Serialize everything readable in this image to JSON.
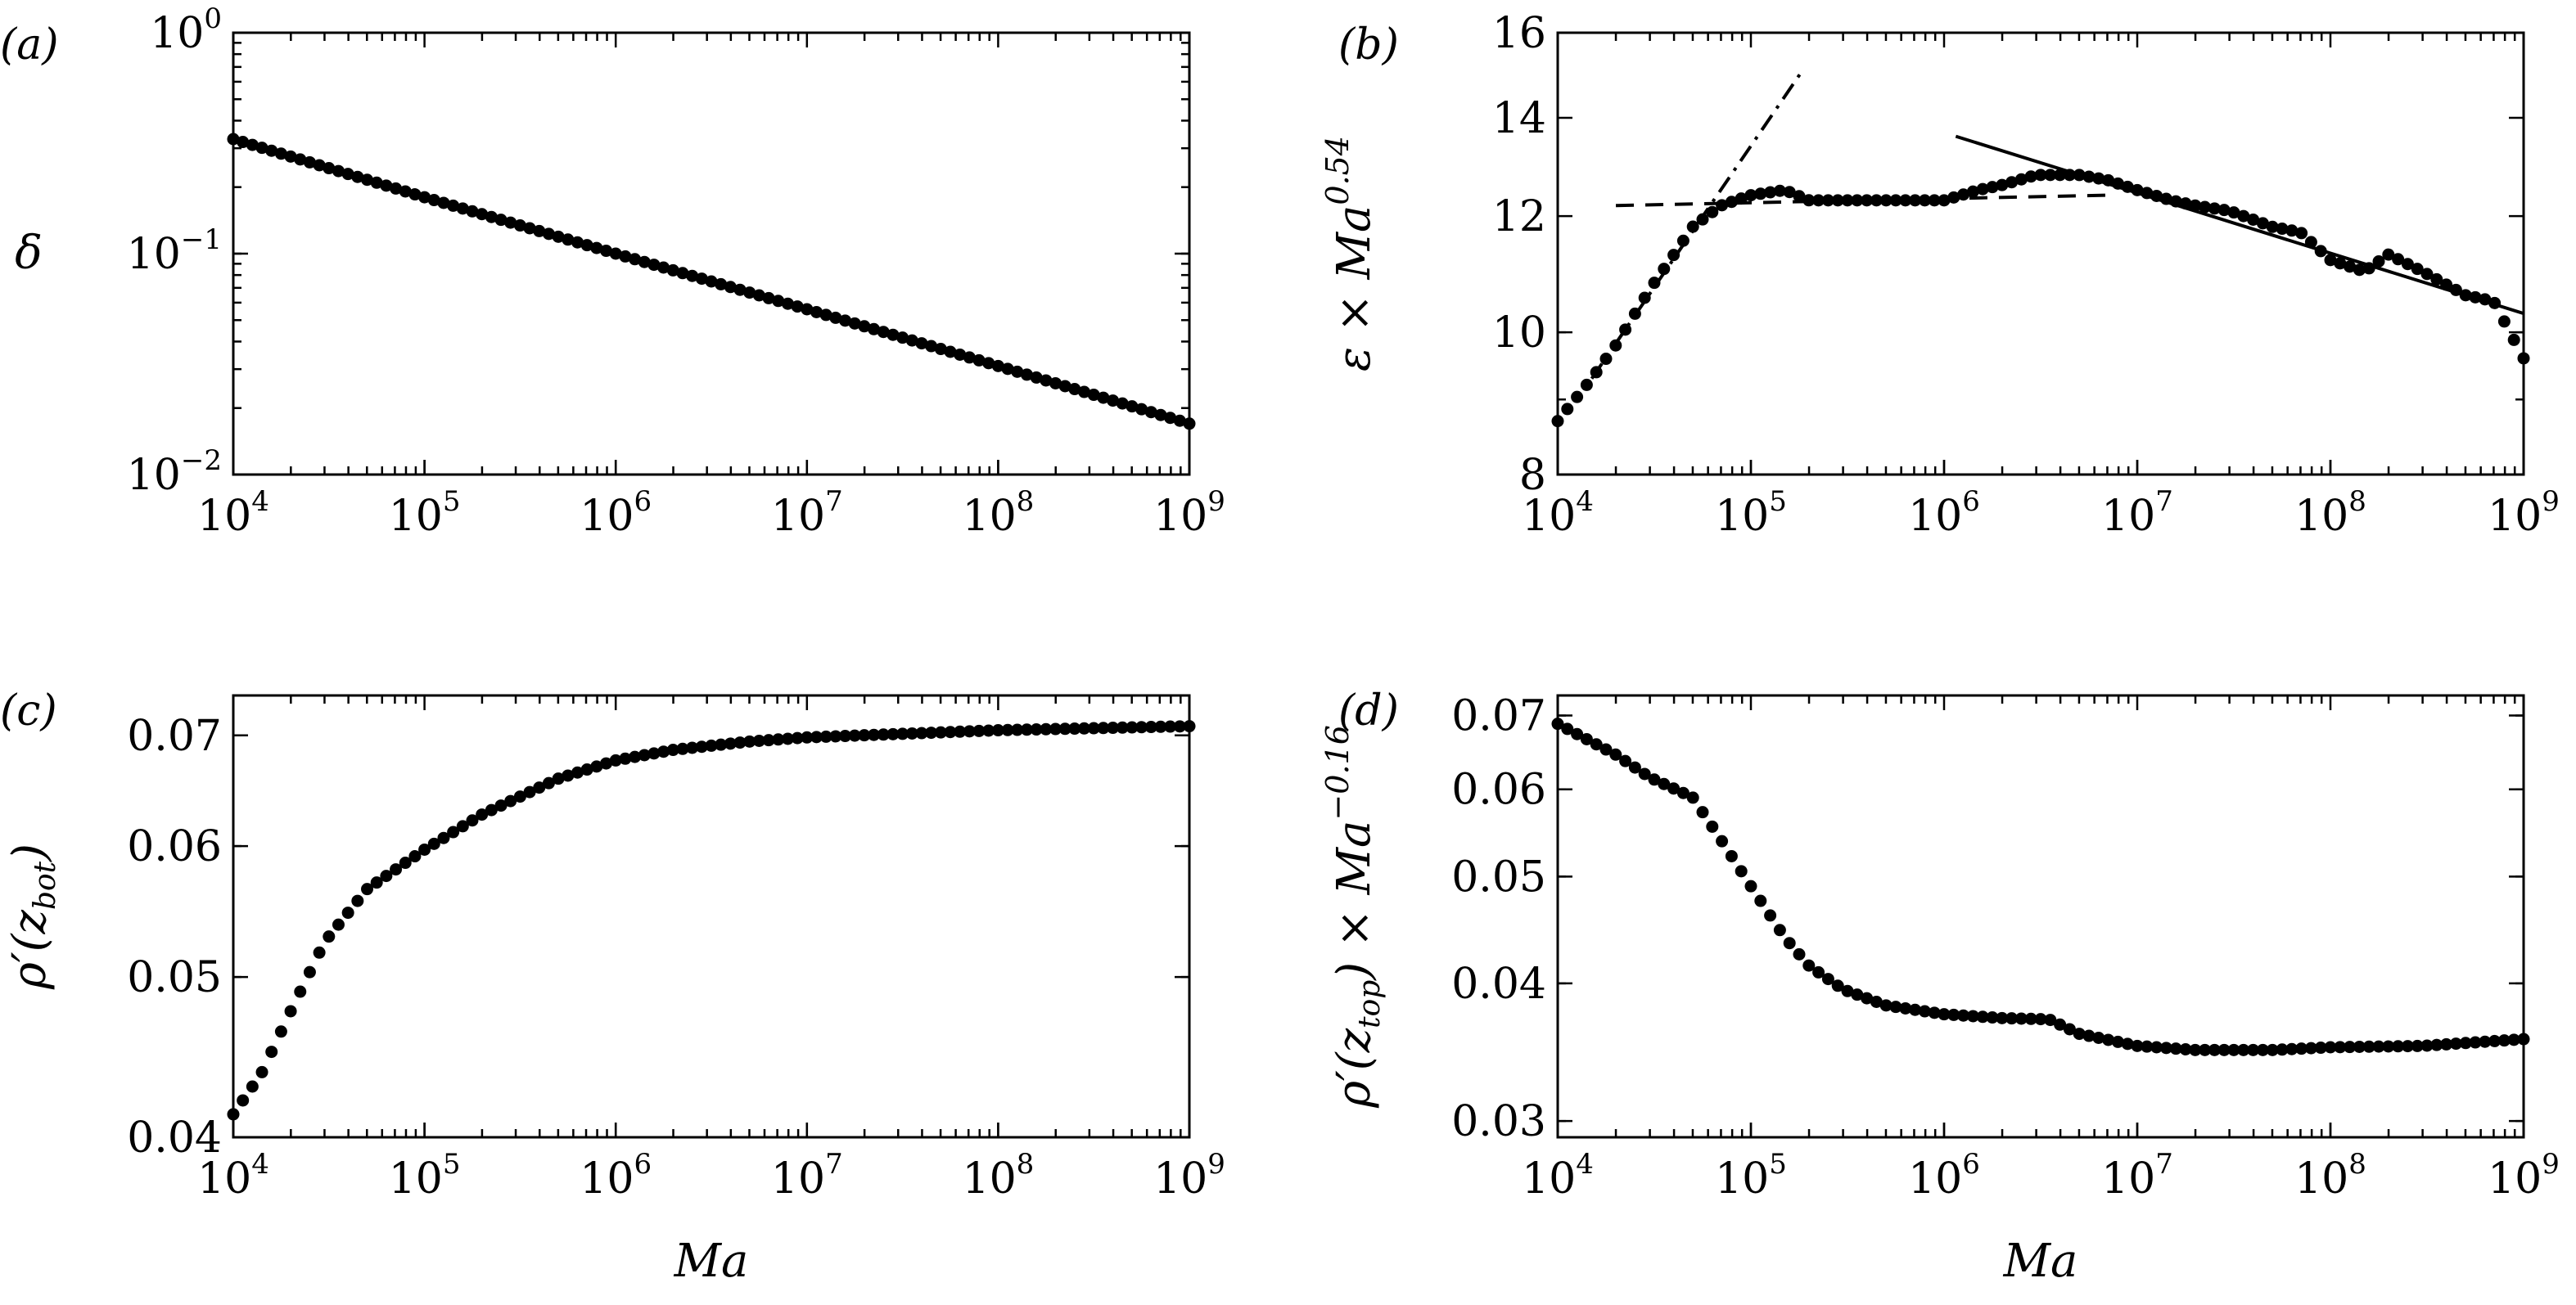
{
  "figure": {
    "x_axis_label": "Ma"
  },
  "chart_data": [
    {
      "id": "a",
      "type": "scatter",
      "panel_label": "(a)",
      "xscale": "log",
      "yscale": "log",
      "xlim": [
        10000,
        1000000000
      ],
      "ylim": [
        0.01,
        1
      ],
      "x_ticks": [
        {
          "base": "10",
          "exp": "4"
        },
        {
          "base": "10",
          "exp": "5"
        },
        {
          "base": "10",
          "exp": "6"
        },
        {
          "base": "10",
          "exp": "7"
        },
        {
          "base": "10",
          "exp": "8"
        },
        {
          "base": "10",
          "exp": "9"
        }
      ],
      "y_ticks": [
        {
          "value": 0.01,
          "base": "10",
          "exp": "−2"
        },
        {
          "value": 0.1,
          "base": "10",
          "exp": "−1"
        },
        {
          "value": 1,
          "base": "10",
          "exp": "0"
        }
      ],
      "ylabel": "δ",
      "xlabel": "",
      "series": [
        {
          "name": "δ",
          "style": "markers",
          "points": [
            [
              10000,
              0.33
            ],
            [
              100000,
              0.18
            ],
            [
              1000000,
              0.1
            ],
            [
              10000000,
              0.056
            ],
            [
              100000000,
              0.031
            ],
            [
              1000000000,
              0.017
            ]
          ]
        }
      ]
    },
    {
      "id": "b",
      "type": "scatter",
      "panel_label": "(b)",
      "xscale": "log",
      "yscale": "log",
      "xlim": [
        10000,
        1000000000
      ],
      "ylim": [
        8,
        16
      ],
      "x_ticks": [
        {
          "base": "10",
          "exp": "4"
        },
        {
          "base": "10",
          "exp": "5"
        },
        {
          "base": "10",
          "exp": "6"
        },
        {
          "base": "10",
          "exp": "7"
        },
        {
          "base": "10",
          "exp": "8"
        },
        {
          "base": "10",
          "exp": "9"
        }
      ],
      "y_ticks": [
        {
          "value": 8,
          "label": "8"
        },
        {
          "value": 10,
          "label": "10"
        },
        {
          "value": 12,
          "label": "12"
        },
        {
          "value": 14,
          "label": "14"
        },
        {
          "value": 16,
          "label": "16"
        }
      ],
      "ylabel": {
        "pre": "ε × Ma",
        "exp": "0.54"
      },
      "xlabel": "",
      "series": [
        {
          "name": "data",
          "style": "markers",
          "points": [
            [
              10000,
              8.7
            ],
            [
              15000,
              9.3
            ],
            [
              20000,
              9.8
            ],
            [
              30000,
              10.7
            ],
            [
              40000,
              11.3
            ],
            [
              50000,
              11.8
            ],
            [
              70000,
              12.2
            ],
            [
              100000,
              12.4
            ],
            [
              150000,
              12.5
            ],
            [
              200000,
              12.3
            ],
            [
              300000,
              12.3
            ],
            [
              500000,
              12.3
            ],
            [
              700000,
              12.3
            ],
            [
              1000000,
              12.3
            ],
            [
              1500000,
              12.5
            ],
            [
              2000000,
              12.6
            ],
            [
              3000000,
              12.8
            ],
            [
              5000000,
              12.8
            ],
            [
              7000000,
              12.7
            ],
            [
              10000000,
              12.5
            ],
            [
              15000000,
              12.3
            ],
            [
              20000000,
              12.2
            ],
            [
              30000000,
              12.1
            ],
            [
              50000000,
              11.8
            ],
            [
              70000000,
              11.7
            ],
            [
              100000000,
              11.2
            ],
            [
              150000000,
              11.0
            ],
            [
              200000000,
              11.3
            ],
            [
              300000000,
              11.0
            ],
            [
              500000000,
              10.6
            ],
            [
              700000000,
              10.5
            ],
            [
              1000000000,
              9.6
            ]
          ]
        },
        {
          "name": "fit-dash-dot",
          "style": "dashdot",
          "points": [
            [
              15000,
              9.3
            ],
            [
              180000,
              15.0
            ]
          ]
        },
        {
          "name": "fit-dashed",
          "style": "dashed",
          "points": [
            [
              20000,
              12.2
            ],
            [
              7000000,
              12.4
            ]
          ]
        },
        {
          "name": "fit-solid",
          "style": "solid",
          "points": [
            [
              1150000,
              13.6
            ],
            [
              1000000000,
              10.3
            ]
          ]
        }
      ]
    },
    {
      "id": "c",
      "type": "scatter",
      "panel_label": "(c)",
      "xscale": "log",
      "yscale": "log",
      "xlim": [
        10000,
        1000000000
      ],
      "ylim": [
        0.04,
        0.074
      ],
      "x_ticks": [
        {
          "base": "10",
          "exp": "4"
        },
        {
          "base": "10",
          "exp": "5"
        },
        {
          "base": "10",
          "exp": "6"
        },
        {
          "base": "10",
          "exp": "7"
        },
        {
          "base": "10",
          "exp": "8"
        },
        {
          "base": "10",
          "exp": "9"
        }
      ],
      "y_ticks": [
        {
          "value": 0.04,
          "label": "0.04"
        },
        {
          "value": 0.05,
          "label": "0.05"
        },
        {
          "value": 0.06,
          "label": "0.06"
        },
        {
          "value": 0.07,
          "label": "0.07"
        }
      ],
      "ylabel": {
        "pre": "ρ′(z",
        "sub": "bot",
        "post": ")"
      },
      "xlabel": "Ma",
      "series": [
        {
          "name": "ρ′(z_bot)",
          "style": "markers",
          "points": [
            [
              10000,
              0.0413
            ],
            [
              14000,
              0.0437
            ],
            [
              20000,
              0.0477
            ],
            [
              30000,
              0.0525
            ],
            [
              50000,
              0.0565
            ],
            [
              100000,
              0.0597
            ],
            [
              200000,
              0.0627
            ],
            [
              500000,
              0.0659
            ],
            [
              1000000,
              0.0676
            ],
            [
              2000000,
              0.0686
            ],
            [
              5000000,
              0.0694
            ],
            [
              10000000,
              0.0698
            ],
            [
              100000000,
              0.0705
            ],
            [
              1000000000,
              0.0709
            ]
          ]
        }
      ]
    },
    {
      "id": "d",
      "type": "scatter",
      "panel_label": "(d)",
      "xscale": "log",
      "yscale": "log",
      "xlim": [
        10000,
        1000000000
      ],
      "ylim": [
        0.029,
        0.073
      ],
      "x_ticks": [
        {
          "base": "10",
          "exp": "4"
        },
        {
          "base": "10",
          "exp": "5"
        },
        {
          "base": "10",
          "exp": "6"
        },
        {
          "base": "10",
          "exp": "7"
        },
        {
          "base": "10",
          "exp": "8"
        },
        {
          "base": "10",
          "exp": "9"
        }
      ],
      "y_ticks": [
        {
          "value": 0.03,
          "label": "0.03"
        },
        {
          "value": 0.04,
          "label": "0.04"
        },
        {
          "value": 0.05,
          "label": "0.05"
        },
        {
          "value": 0.06,
          "label": "0.06"
        },
        {
          "value": 0.07,
          "label": "0.07"
        }
      ],
      "ylabel": {
        "pre": "ρ′(z",
        "sub": "top",
        "post": ") × Ma",
        "exp": "−0.16"
      },
      "xlabel": "Ma",
      "series": [
        {
          "name": "ρ′(z_top) × Ma^−0.16",
          "style": "markers",
          "points": [
            [
              10000,
              0.0688
            ],
            [
              20000,
              0.0645
            ],
            [
              30000,
              0.0615
            ],
            [
              50000,
              0.059
            ],
            [
              70000,
              0.054
            ],
            [
              100000,
              0.049
            ],
            [
              150000,
              0.044
            ],
            [
              200000,
              0.0415
            ],
            [
              300000,
              0.0395
            ],
            [
              500000,
              0.0382
            ],
            [
              1000000,
              0.0375
            ],
            [
              2000000,
              0.0372
            ],
            [
              3500000,
              0.0371
            ],
            [
              5000000,
              0.036
            ],
            [
              10000000,
              0.0351
            ],
            [
              20000000,
              0.0348
            ],
            [
              50000000,
              0.0348
            ],
            [
              100000000,
              0.035
            ],
            [
              300000000,
              0.0351
            ],
            [
              1000000000,
              0.0356
            ]
          ]
        }
      ]
    }
  ]
}
